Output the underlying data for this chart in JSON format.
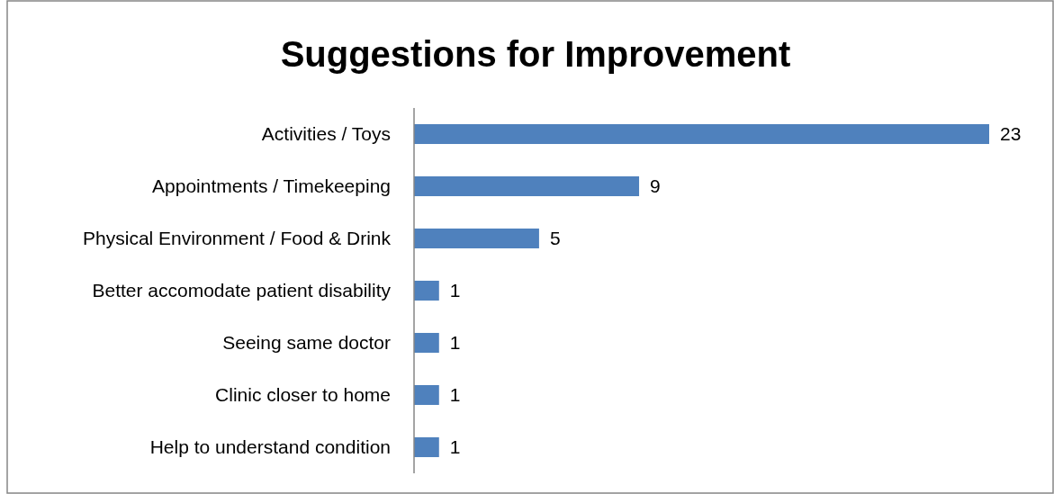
{
  "chart_data": {
    "type": "bar",
    "orientation": "horizontal",
    "title": "Suggestions for Improvement",
    "categories": [
      "Activities / Toys",
      "Appointments / Timekeeping",
      "Physical Environment / Food & Drink",
      "Better accomodate patient disability",
      "Seeing same doctor",
      "Clinic closer to home",
      "Help to understand condition"
    ],
    "values": [
      23,
      9,
      5,
      1,
      1,
      1,
      1
    ],
    "color": "#4f81bd",
    "data_labels": true
  }
}
